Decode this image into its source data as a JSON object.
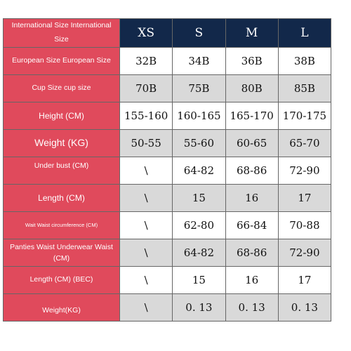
{
  "header_label": "International Size International Size",
  "sizes": [
    "XS",
    "S",
    "M",
    "L"
  ],
  "rows": [
    {
      "label": "European Size European Size",
      "values": [
        "32B",
        "34B",
        "36B",
        "38B"
      ]
    },
    {
      "label": "Cup Size cup size",
      "values": [
        "70B",
        "75B",
        "80B",
        "85B"
      ]
    },
    {
      "label": "Height (CM)",
      "values": [
        "155-160",
        "160-165",
        "165-170",
        "170-175"
      ]
    },
    {
      "label": "Weight (KG)",
      "values": [
        "50-55",
        "55-60",
        "60-65",
        "65-70"
      ]
    },
    {
      "label": "Under bust (CM)",
      "values": [
        "\\",
        "64-82",
        "68-86",
        "72-90"
      ]
    },
    {
      "label": "Length (CM)",
      "values": [
        "\\",
        "15",
        "16",
        "17"
      ]
    },
    {
      "label": "Wait Waist circumference (CM)",
      "values": [
        "\\",
        "62-80",
        "66-84",
        "70-88"
      ]
    },
    {
      "label": "Panties Waist Underwear Waist (CM)",
      "values": [
        "\\",
        "64-82",
        "68-86",
        "72-90"
      ]
    },
    {
      "label": "Length (CM) (BEC)",
      "values": [
        "\\",
        "15",
        "16",
        "17"
      ]
    },
    {
      "label": "Weight(KG)",
      "values": [
        "\\",
        "0. 13",
        "0. 13",
        "0. 13"
      ]
    }
  ],
  "colors": {
    "label_bg": "#e04a5c",
    "header_bg": "#12284a",
    "stripe": "#d9d9d9"
  }
}
